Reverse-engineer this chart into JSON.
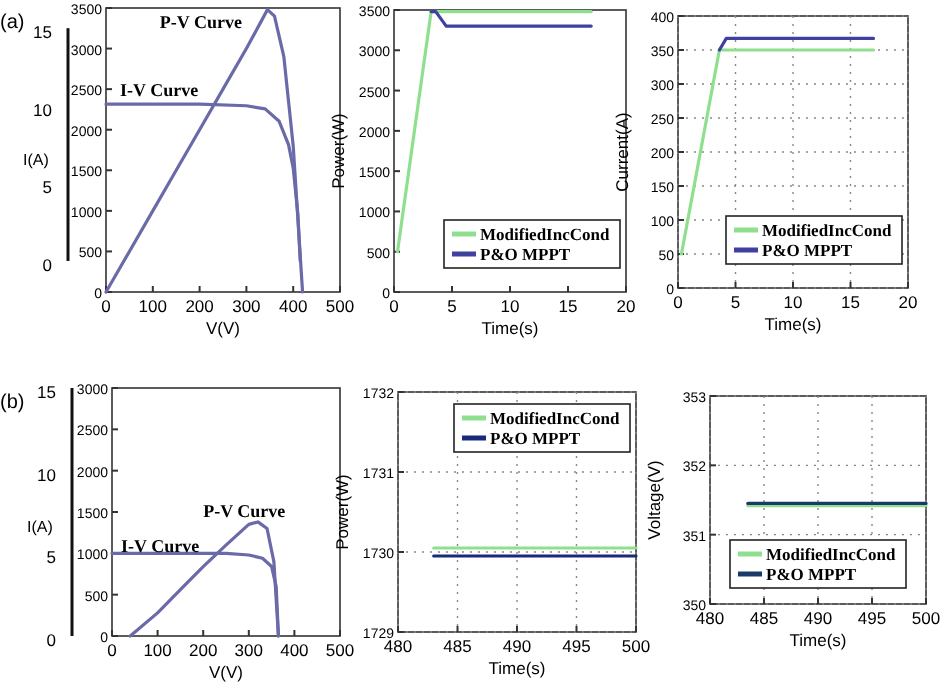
{
  "chart_data": [
    {
      "type": "line",
      "xlabel": "V(V)",
      "y2label": "I(A)",
      "annotations": [
        "(a)"
      ],
      "xlim": [
        0,
        500
      ],
      "xticks": [
        0,
        100,
        200,
        300,
        400,
        500
      ],
      "ylim": [
        0,
        3500
      ],
      "yticks": [
        0,
        500,
        1000,
        1500,
        2000,
        2500,
        3000,
        3500
      ],
      "y2lim": [
        -2,
        16.3
      ],
      "y2ticks": [
        0,
        5,
        10,
        15
      ],
      "grid": false,
      "legend": false,
      "series": [
        {
          "name": "P-V Curve",
          "color": "#6a6aa8",
          "x": [
            0,
            50,
            100,
            150,
            200,
            250,
            300,
            345,
            360,
            380,
            400,
            410,
            420
          ],
          "values": [
            0,
            500,
            1000,
            1500,
            2000,
            2500,
            3000,
            3480,
            3400,
            2900,
            1800,
            900,
            0
          ]
        },
        {
          "name": "I-V Curve",
          "color": "#6a6aa8",
          "axis": "y2",
          "x": [
            0,
            100,
            200,
            300,
            340,
            370,
            390,
            400,
            410,
            415
          ],
          "values": [
            10.1,
            10.1,
            10.1,
            10,
            9.8,
            9,
            7.5,
            6,
            3,
            0
          ]
        }
      ]
    },
    {
      "type": "line",
      "xlabel": "Time(s)",
      "ylabel": "Power(W)",
      "xlim": [
        0,
        20
      ],
      "xticks": [
        0,
        5,
        10,
        15,
        20
      ],
      "ylim": [
        0,
        3500
      ],
      "yticks": [
        0,
        500,
        1000,
        1500,
        2000,
        2500,
        3000,
        3500
      ],
      "grid": false,
      "legend": "bottom right",
      "series": [
        {
          "name": "ModifiedIncCond",
          "color": "#8ee08e",
          "x": [
            0.3,
            3.2,
            17
          ],
          "values": [
            500,
            3480,
            3480
          ]
        },
        {
          "name": "P&O MPPT",
          "color": "#4040a0",
          "x": [
            3.2,
            3.6,
            4.5,
            17
          ],
          "values": [
            3480,
            3480,
            3300,
            3300
          ]
        }
      ]
    },
    {
      "type": "line",
      "xlabel": "Time(s)",
      "ylabel": "Current(A)",
      "xlim": [
        0,
        20
      ],
      "xticks": [
        0,
        5,
        10,
        15,
        20
      ],
      "ylim": [
        0,
        400
      ],
      "yticks": [
        0,
        50,
        100,
        150,
        200,
        250,
        300,
        350,
        400
      ],
      "grid": true,
      "legend": "bottom right",
      "series": [
        {
          "name": "ModifiedIncCond",
          "color": "#8ee08e",
          "x": [
            0.3,
            3.6,
            17
          ],
          "values": [
            50,
            350,
            350
          ]
        },
        {
          "name": "P&O MPPT",
          "color": "#4040a0",
          "x": [
            3.6,
            4.2,
            17
          ],
          "values": [
            350,
            367,
            367
          ]
        }
      ]
    },
    {
      "type": "line",
      "xlabel": "V(V)",
      "y2label": "I(A)",
      "annotations": [
        "(b)"
      ],
      "xlim": [
        0,
        500
      ],
      "xticks": [
        0,
        100,
        200,
        300,
        400,
        500
      ],
      "ylim": [
        0,
        3000
      ],
      "yticks": [
        0,
        500,
        1000,
        1500,
        2000,
        2500,
        3000
      ],
      "y2lim": [
        0,
        15
      ],
      "y2ticks": [
        0,
        5,
        10,
        15
      ],
      "grid": false,
      "legend": false,
      "series": [
        {
          "name": "P-V Curve",
          "color": "#6a6aa8",
          "x": [
            40,
            100,
            150,
            200,
            250,
            300,
            320,
            340,
            355,
            365
          ],
          "values": [
            0,
            280,
            560,
            840,
            1100,
            1350,
            1380,
            1300,
            900,
            0
          ]
        },
        {
          "name": "I-V Curve",
          "color": "#6a6aa8",
          "axis": "y2",
          "x": [
            0,
            100,
            200,
            250,
            300,
            330,
            350,
            360,
            365
          ],
          "values": [
            5,
            5,
            5,
            5,
            4.9,
            4.7,
            4.2,
            3,
            0
          ]
        }
      ]
    },
    {
      "type": "line",
      "xlabel": "Time(s)",
      "ylabel": "Power(W)",
      "xlim": [
        480,
        500
      ],
      "xticks": [
        480,
        485,
        490,
        495,
        500
      ],
      "ylim": [
        1729,
        1732
      ],
      "yticks": [
        1729,
        1730,
        1731,
        1732
      ],
      "grid": true,
      "legend": "top right",
      "series": [
        {
          "name": "ModifiedIncCond",
          "color": "#8ee08e",
          "x": [
            483,
            500
          ],
          "values": [
            1730.05,
            1730.05
          ]
        },
        {
          "name": "P&O MPPT",
          "color": "#1a2a7a",
          "x": [
            483,
            500
          ],
          "values": [
            1729.95,
            1729.95
          ]
        }
      ]
    },
    {
      "type": "line",
      "xlabel": "Time(s)",
      "ylabel": "Voltage(V)",
      "xlim": [
        480,
        500
      ],
      "xticks": [
        480,
        485,
        490,
        495,
        500
      ],
      "ylim": [
        350,
        353
      ],
      "yticks": [
        350,
        351,
        352,
        353
      ],
      "grid": true,
      "legend": "bottom",
      "series": [
        {
          "name": "ModifiedIncCond",
          "color": "#8ee08e",
          "x": [
            483.5,
            500
          ],
          "values": [
            351.42,
            351.42
          ]
        },
        {
          "name": "P&O MPPT",
          "color": "#1a3a6a",
          "x": [
            483.5,
            500
          ],
          "values": [
            351.45,
            351.45
          ]
        }
      ]
    }
  ]
}
